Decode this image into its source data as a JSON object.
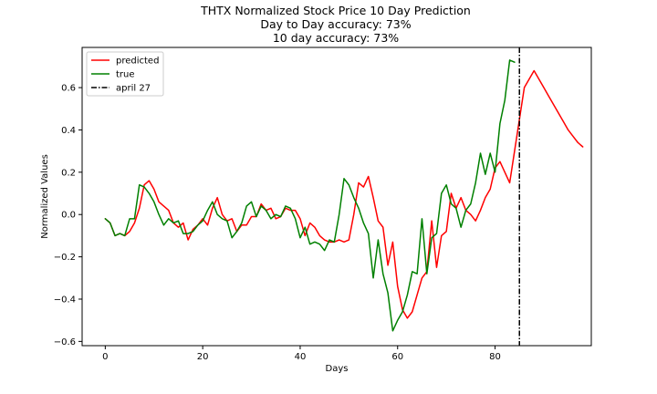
{
  "chart_data": {
    "type": "line",
    "title_lines": [
      "THTX Normalized Stock Price 10 Day Prediction",
      "Day to Day accuracy: 73%",
      "10 day accuracy: 73%"
    ],
    "xlabel": "Days",
    "ylabel": "Normalized Values",
    "xlim": [
      -4.75,
      99.75
    ],
    "ylim": [
      -0.62,
      0.79
    ],
    "xticks": [
      0,
      20,
      40,
      60,
      80
    ],
    "yticks": [
      -0.6,
      -0.4,
      -0.2,
      0.0,
      0.2,
      0.4,
      0.6
    ],
    "ytick_labels": [
      "−0.6",
      "−0.4",
      "−0.2",
      "0.0",
      "0.2",
      "0.4",
      "0.6"
    ],
    "grid": false,
    "legend_position": "top-left",
    "series": [
      {
        "name": "predicted",
        "color": "#ff0000",
        "x_start": 0,
        "values": [
          -0.02,
          -0.04,
          -0.1,
          -0.09,
          -0.1,
          -0.08,
          -0.04,
          0.03,
          0.14,
          0.16,
          0.12,
          0.06,
          0.04,
          0.02,
          -0.04,
          -0.06,
          -0.04,
          -0.12,
          -0.07,
          -0.05,
          -0.02,
          -0.05,
          0.03,
          0.08,
          0.0,
          -0.03,
          -0.02,
          -0.08,
          -0.05,
          -0.05,
          -0.01,
          -0.01,
          0.05,
          0.02,
          0.03,
          -0.02,
          -0.01,
          0.03,
          0.02,
          0.02,
          -0.02,
          -0.1,
          -0.04,
          -0.06,
          -0.1,
          -0.12,
          -0.13,
          -0.13,
          -0.12,
          -0.13,
          -0.12,
          0.0,
          0.15,
          0.13,
          0.18,
          0.08,
          -0.03,
          -0.06,
          -0.24,
          -0.13,
          -0.34,
          -0.45,
          -0.49,
          -0.46,
          -0.38,
          -0.3,
          -0.27,
          -0.03,
          -0.25,
          -0.1,
          -0.08,
          0.1,
          0.03,
          0.08,
          0.02,
          0.0,
          -0.03,
          0.02,
          0.08,
          0.12,
          0.22,
          0.25,
          0.2,
          0.15,
          0.3,
          0.45,
          0.6,
          0.64,
          0.68,
          0.64,
          0.6,
          0.56,
          0.52,
          0.48,
          0.44,
          0.4,
          0.37,
          0.34,
          0.32
        ]
      },
      {
        "name": "true",
        "color": "#008000",
        "x_start": 0,
        "values": [
          -0.02,
          -0.04,
          -0.1,
          -0.09,
          -0.1,
          -0.02,
          -0.02,
          0.14,
          0.13,
          0.1,
          0.06,
          0.0,
          -0.05,
          -0.02,
          -0.04,
          -0.03,
          -0.09,
          -0.09,
          -0.08,
          -0.05,
          -0.03,
          0.02,
          0.06,
          0.0,
          -0.02,
          -0.03,
          -0.11,
          -0.08,
          -0.04,
          0.04,
          0.06,
          -0.01,
          0.04,
          0.02,
          -0.02,
          0.0,
          -0.01,
          0.04,
          0.03,
          -0.02,
          -0.11,
          -0.06,
          -0.14,
          -0.13,
          -0.14,
          -0.17,
          -0.12,
          -0.13,
          0.0,
          0.17,
          0.14,
          0.08,
          0.03,
          -0.04,
          -0.09,
          -0.3,
          -0.12,
          -0.28,
          -0.37,
          -0.55,
          -0.5,
          -0.46,
          -0.38,
          -0.27,
          -0.28,
          -0.02,
          -0.28,
          -0.11,
          -0.09,
          0.1,
          0.14,
          0.05,
          0.03,
          -0.06,
          0.02,
          0.05,
          0.15,
          0.29,
          0.19,
          0.29,
          0.2,
          0.43,
          0.54,
          0.73,
          0.72
        ]
      }
    ],
    "vline": {
      "name": "april 27",
      "x": 85,
      "color": "#000000",
      "style": "dash-dot"
    }
  }
}
